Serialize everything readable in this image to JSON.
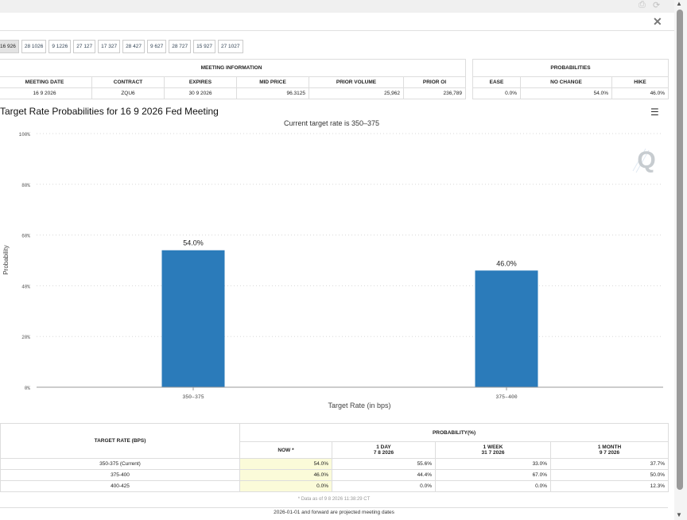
{
  "tabs": [
    "16 926",
    "28 1026",
    "9 1226",
    "27 127",
    "17 327",
    "28 427",
    "9 627",
    "28 727",
    "15 927",
    "27 1027"
  ],
  "meeting_info": {
    "header": "MEETING INFORMATION",
    "columns": [
      "MEETING DATE",
      "CONTRACT",
      "EXPIRES",
      "MID PRICE",
      "PRIOR VOLUME",
      "PRIOR OI"
    ],
    "row": [
      "16 9 2026",
      "ZQU6",
      "30 9 2026",
      "96.3125",
      "25,962",
      "236,789"
    ]
  },
  "probabilities": {
    "header": "PROBABILITIES",
    "columns": [
      "EASE",
      "NO CHANGE",
      "HIKE"
    ],
    "row": [
      "0.0%",
      "54.0%",
      "46.0%"
    ]
  },
  "chart_title": "Target Rate Probabilities for 16 9 2026 Fed Meeting",
  "chart_data": {
    "type": "bar",
    "subtitle": "Current target rate is 350–375",
    "categories": [
      "350–375",
      "375–400"
    ],
    "values": [
      54.0,
      46.0
    ],
    "data_labels": [
      "54.0%",
      "46.0%"
    ],
    "xlabel": "Target Rate (in bps)",
    "ylabel": "Probability",
    "ylim": [
      0,
      100
    ],
    "yticks": [
      "0%",
      "20%",
      "40%",
      "60%",
      "80%",
      "100%"
    ],
    "grid": true,
    "bar_color": "#2b7bba"
  },
  "bottom_table": {
    "col1_header": "TARGET RATE (BPS)",
    "group_header": "PROBABILITY(%)",
    "now_header": "NOW *",
    "period_headers": [
      {
        "label": "1 DAY",
        "date": "7 8 2026"
      },
      {
        "label": "1 WEEK",
        "date": "31 7 2026"
      },
      {
        "label": "1 MONTH",
        "date": "9 7 2026"
      }
    ],
    "rows": [
      {
        "rate": "350-375 (Current)",
        "now": "54.0%",
        "day": "55.6%",
        "week": "33.0%",
        "month": "37.7%"
      },
      {
        "rate": "375-400",
        "now": "46.0%",
        "day": "44.4%",
        "week": "67.0%",
        "month": "50.0%"
      },
      {
        "rate": "400-425",
        "now": "0.0%",
        "day": "0.0%",
        "week": "0.0%",
        "month": "12.3%"
      }
    ]
  },
  "footnote": "* Data as of 9 8 2026 11:38:29 CT",
  "footer": "2026-01-01 and forward are projected meeting dates",
  "icons": {
    "close": "✕",
    "menu": "☰",
    "watermark": "Q"
  }
}
